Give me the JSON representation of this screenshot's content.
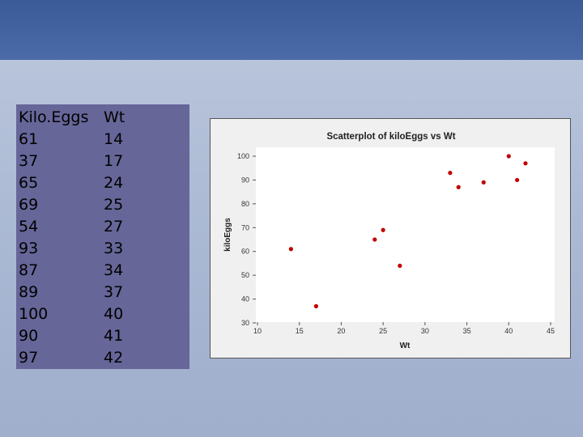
{
  "table": {
    "headers": [
      "Kilo.Eggs",
      "Wt"
    ],
    "rows": [
      [
        "61",
        "14"
      ],
      [
        "37",
        "17"
      ],
      [
        "65",
        "24"
      ],
      [
        "69",
        "25"
      ],
      [
        "54",
        "27"
      ],
      [
        "93",
        "33"
      ],
      [
        "87",
        "34"
      ],
      [
        "89",
        "37"
      ],
      [
        "100",
        "40"
      ],
      [
        "90",
        "41"
      ],
      [
        "97",
        "42"
      ]
    ]
  },
  "chart_data": {
    "type": "scatter",
    "title": "Scatterplot of kiloEggs vs Wt",
    "xlabel": "Wt",
    "ylabel": "kiloEggs",
    "xlim": [
      10,
      45
    ],
    "ylim": [
      30,
      100
    ],
    "xticks": [
      "10",
      "15",
      "20",
      "25",
      "30",
      "35",
      "40",
      "45"
    ],
    "yticks": [
      "30",
      "40",
      "50",
      "60",
      "70",
      "80",
      "90",
      "100"
    ],
    "x": [
      14,
      17,
      24,
      25,
      27,
      33,
      34,
      37,
      40,
      41,
      42
    ],
    "y": [
      61,
      37,
      65,
      69,
      54,
      93,
      87,
      89,
      100,
      90,
      97
    ],
    "marker_color": "#c00000",
    "grid": false
  }
}
